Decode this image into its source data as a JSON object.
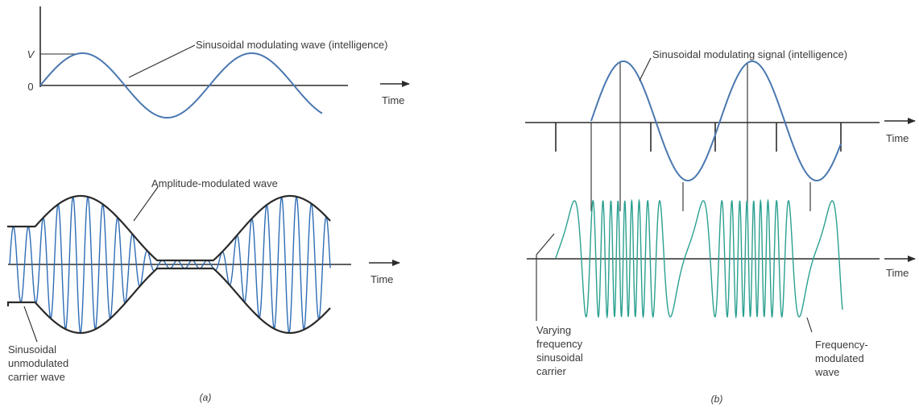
{
  "panel_a": {
    "modulating_label": "Sinusoidal modulating wave (intelligence)",
    "v_label": "V",
    "zero_label": "0",
    "time_top": "Time",
    "am_label": "Amplitude-modulated wave",
    "time_bottom": "Time",
    "carrier_label": [
      "Sinusoidal",
      "unmodulated",
      "carrier wave"
    ],
    "caption": "(a)"
  },
  "panel_b": {
    "modulating_label": "Sinusoidal modulating signal (intelligence)",
    "time_top": "Time",
    "time_bottom": "Time",
    "varying_label": [
      "Varying",
      "frequency",
      "sinusoidal",
      "carrier"
    ],
    "fm_label": [
      "Frequency-",
      "modulated",
      "wave"
    ],
    "caption": "(b)"
  },
  "colors": {
    "signal_blue": "#4a78b0",
    "carrier_blue": "#2f6db5",
    "fm_teal": "#2aa08f",
    "axis": "#2b2b2b",
    "text": "#3a3a3a"
  }
}
